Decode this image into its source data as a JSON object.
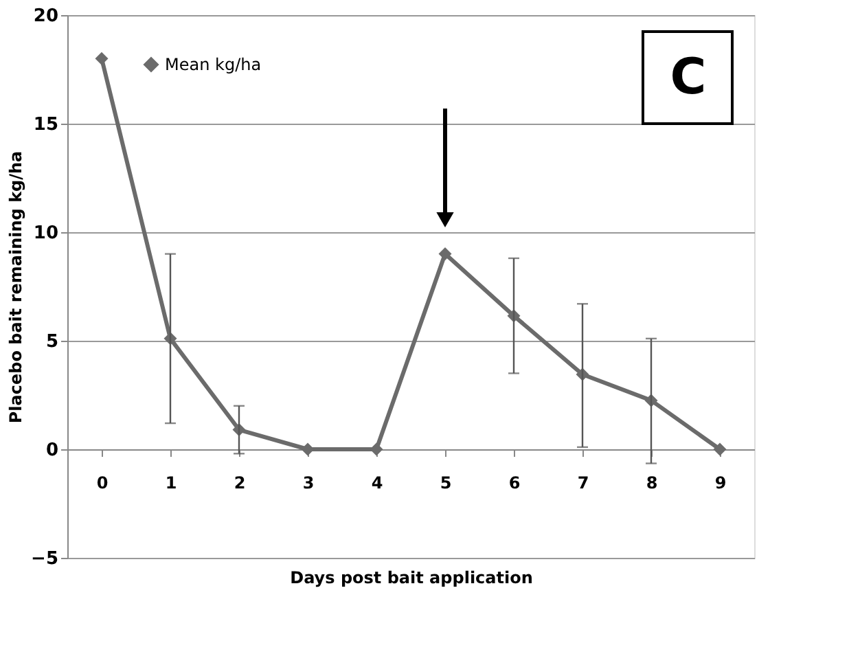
{
  "chart_data": {
    "type": "line",
    "categories": [
      "0",
      "1",
      "2",
      "3",
      "4",
      "5",
      "6",
      "7",
      "8",
      "9"
    ],
    "series": [
      {
        "name": "Mean kg/ha",
        "color": "#6b6b6b",
        "values": [
          18,
          5.1,
          0.9,
          0,
          0,
          9.0,
          6.15,
          3.45,
          2.25,
          0
        ],
        "errors": [
          null,
          [
            1.2,
            9.0
          ],
          [
            -0.2,
            2.0
          ],
          null,
          null,
          null,
          [
            3.5,
            8.8
          ],
          [
            0.1,
            6.7
          ],
          [
            -0.65,
            5.1
          ],
          null
        ]
      }
    ],
    "xlabel": "Days post bait application",
    "ylabel": "Placebo bait remaining kg/ha",
    "ylim": [
      -5,
      20
    ],
    "yticks": [
      -5,
      0,
      5,
      10,
      15,
      20
    ],
    "grid": "y",
    "legend": "top left",
    "marker": "diamond",
    "line_style": "solid",
    "annotations": [
      "C"
    ]
  }
}
